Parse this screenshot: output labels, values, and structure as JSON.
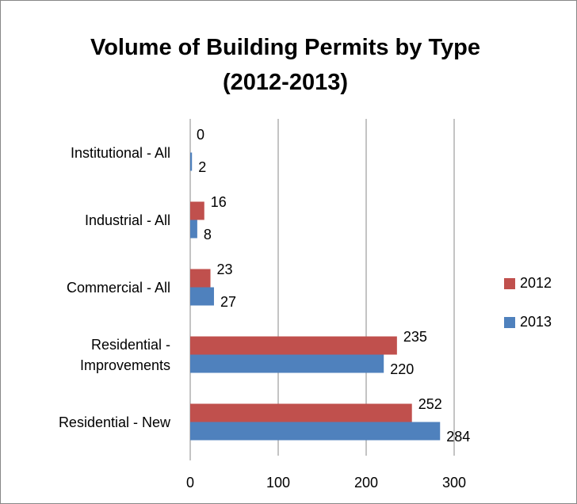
{
  "chart_data": {
    "type": "bar",
    "orientation": "horizontal",
    "title": "Volume of Building Permits by Type (2012-2013)",
    "categories": [
      "Institutional - All",
      "Industrial - All",
      "Commercial - All",
      "Residential - Improvements",
      "Residential - New"
    ],
    "series": [
      {
        "name": "2012",
        "color": "#c0504d",
        "values": [
          0,
          16,
          23,
          235,
          252
        ]
      },
      {
        "name": "2013",
        "color": "#4f81bd",
        "values": [
          2,
          8,
          27,
          220,
          284
        ]
      }
    ],
    "xlim": [
      0,
      300
    ],
    "xticks": [
      0,
      100,
      200,
      300
    ],
    "grid": true,
    "legend": "right"
  }
}
